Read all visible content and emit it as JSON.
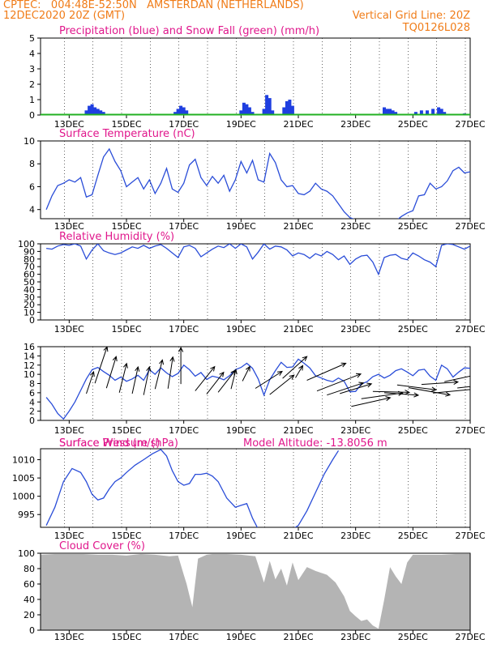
{
  "header": {
    "line1_left": "CPTEC:   004:48E-52:50N   AMSTERDAN (NETHERLANDS)",
    "line2_left": "12DEC2020 20Z (GMT)",
    "line2_right": "Vertical Grid Line: 20Z",
    "line3_right": "TQ0126L028"
  },
  "colors": {
    "header": "#f07c18",
    "title": "#e0178c",
    "line": "#2a4dd8",
    "precip": "#1f3fe0",
    "snow": "#22b022",
    "cloud": "#b4b4b4"
  },
  "x_ticks": [
    "13DEC",
    "15DEC",
    "17DEC",
    "19DEC",
    "21DEC",
    "23DEC",
    "25DEC",
    "27DEC"
  ],
  "chart_data": [
    {
      "type": "bar",
      "title": "Precipitation (blue) and Snow Fall (green) (mm/h)",
      "ylim": [
        0,
        5
      ],
      "yticks": [
        0,
        1,
        2,
        3,
        4,
        5
      ],
      "x_units": "day of December 2020",
      "series": [
        {
          "name": "Precipitation",
          "x": [
            13.6,
            13.7,
            13.8,
            13.9,
            14.0,
            14.1,
            14.2,
            16.7,
            16.8,
            16.9,
            17.0,
            17.1,
            19.0,
            19.1,
            19.2,
            19.3,
            19.4,
            19.8,
            19.9,
            20.0,
            20.1,
            20.5,
            20.6,
            20.7,
            20.8,
            24.0,
            24.1,
            24.2,
            24.3,
            24.4,
            25.1,
            25.3,
            25.5,
            25.7,
            25.9,
            26.0,
            26.1,
            26.8
          ],
          "values": [
            0.3,
            0.6,
            0.7,
            0.5,
            0.4,
            0.3,
            0.2,
            0.2,
            0.4,
            0.6,
            0.5,
            0.3,
            0.3,
            0.8,
            0.7,
            0.5,
            0.2,
            0.4,
            1.3,
            1.1,
            0.3,
            0.5,
            0.9,
            1.0,
            0.6,
            0.5,
            0.4,
            0.4,
            0.3,
            0.2,
            0.2,
            0.3,
            0.3,
            0.4,
            0.5,
            0.4,
            0.2,
            0.1
          ]
        },
        {
          "name": "Snow Fall",
          "values": []
        }
      ]
    },
    {
      "type": "line",
      "title": "Surface Temperature (nC)",
      "ylim": [
        3.2,
        10
      ],
      "yticks": [
        4,
        6,
        8,
        10
      ],
      "series": [
        {
          "x": [
            12.2,
            12.4,
            12.6,
            12.8,
            13.0,
            13.2,
            13.4,
            13.6,
            13.8,
            14.0,
            14.2,
            14.4,
            14.6,
            14.8,
            15.0,
            15.2,
            15.4,
            15.6,
            15.8,
            16.0,
            16.2,
            16.4,
            16.6,
            16.8,
            17.0,
            17.2,
            17.4,
            17.6,
            17.8,
            18.0,
            18.2,
            18.4,
            18.6,
            18.8,
            19.0,
            19.2,
            19.4,
            19.6,
            19.8,
            20.0,
            20.2,
            20.4,
            20.6,
            20.8,
            21.0,
            21.2,
            21.4,
            21.6,
            21.8,
            22.0,
            22.2,
            22.4,
            22.6,
            22.8,
            23.0,
            24.4,
            24.6,
            24.8,
            25.0,
            25.2,
            25.4,
            25.6,
            25.8,
            26.0,
            26.2,
            26.4,
            26.6,
            26.8,
            27.0
          ],
          "values": [
            4.0,
            5.2,
            6.1,
            6.3,
            6.6,
            6.4,
            6.8,
            5.1,
            5.3,
            7.0,
            8.6,
            9.3,
            8.2,
            7.4,
            6.0,
            6.4,
            6.8,
            5.8,
            6.6,
            5.4,
            6.3,
            7.6,
            5.8,
            5.5,
            6.3,
            7.9,
            8.4,
            6.8,
            6.1,
            6.9,
            6.3,
            7.0,
            5.6,
            6.6,
            8.2,
            7.2,
            8.3,
            6.6,
            6.4,
            8.9,
            8.1,
            6.6,
            6.0,
            6.1,
            5.4,
            5.3,
            5.6,
            6.3,
            5.8,
            5.6,
            5.2,
            4.5,
            3.8,
            3.3,
            3.1,
            3.0,
            3.4,
            3.7,
            3.9,
            5.2,
            5.3,
            6.3,
            5.8,
            6.0,
            6.5,
            7.4,
            7.7,
            7.2,
            7.3
          ]
        }
      ]
    },
    {
      "type": "line",
      "title": "Relative Humidity (%)",
      "ylim": [
        0,
        100
      ],
      "yticks": [
        0,
        10,
        20,
        30,
        40,
        50,
        60,
        70,
        80,
        90,
        100
      ],
      "series": [
        {
          "x": [
            12.2,
            12.4,
            12.6,
            12.8,
            13.0,
            13.2,
            13.4,
            13.6,
            13.8,
            14.0,
            14.2,
            14.4,
            14.6,
            14.8,
            15.0,
            15.2,
            15.4,
            15.6,
            15.8,
            16.0,
            16.2,
            16.4,
            16.6,
            16.8,
            17.0,
            17.2,
            17.4,
            17.6,
            17.8,
            18.0,
            18.2,
            18.4,
            18.6,
            18.8,
            19.0,
            19.2,
            19.4,
            19.6,
            19.8,
            20.0,
            20.2,
            20.4,
            20.6,
            20.8,
            21.0,
            21.2,
            21.4,
            21.6,
            21.8,
            22.0,
            22.2,
            22.4,
            22.6,
            22.8,
            23.0,
            23.2,
            23.4,
            23.6,
            23.8,
            24.0,
            24.2,
            24.4,
            24.6,
            24.8,
            25.0,
            25.2,
            25.4,
            25.6,
            25.8,
            26.0,
            26.2,
            26.4,
            26.6,
            26.8,
            27.0
          ],
          "values": [
            94,
            93,
            97,
            99,
            98,
            100,
            97,
            80,
            92,
            100,
            91,
            88,
            86,
            88,
            92,
            96,
            94,
            98,
            94,
            97,
            99,
            94,
            88,
            82,
            96,
            98,
            94,
            83,
            88,
            93,
            97,
            95,
            100,
            94,
            100,
            96,
            80,
            89,
            100,
            93,
            97,
            96,
            92,
            84,
            88,
            86,
            81,
            87,
            84,
            90,
            86,
            79,
            84,
            73,
            80,
            84,
            85,
            76,
            60,
            82,
            85,
            86,
            81,
            79,
            88,
            84,
            79,
            76,
            70,
            98,
            100,
            99,
            96,
            93,
            97
          ]
        }
      ]
    },
    {
      "type": "line",
      "title": "Surface Wind (m/s)",
      "ylim": [
        0,
        16
      ],
      "yticks": [
        0,
        2,
        4,
        6,
        8,
        10,
        12,
        14,
        16
      ],
      "series": [
        {
          "x": [
            12.2,
            12.4,
            12.6,
            12.8,
            13.0,
            13.2,
            13.4,
            13.6,
            13.8,
            14.0,
            14.2,
            14.4,
            14.6,
            14.8,
            15.0,
            15.2,
            15.4,
            15.6,
            15.8,
            16.0,
            16.2,
            16.4,
            16.6,
            16.8,
            17.0,
            17.2,
            17.4,
            17.6,
            17.8,
            18.0,
            18.2,
            18.4,
            18.6,
            18.8,
            19.0,
            19.2,
            19.4,
            19.6,
            19.8,
            20.0,
            20.2,
            20.4,
            20.6,
            20.8,
            21.0,
            21.2,
            21.4,
            21.6,
            21.8,
            22.0,
            22.2,
            22.4,
            22.6,
            22.8,
            23.0,
            23.2,
            23.4,
            23.6,
            23.8,
            24.0,
            24.2,
            24.4,
            24.6,
            24.8,
            25.0,
            25.2,
            25.4,
            25.6,
            25.8,
            26.0,
            26.2,
            26.4,
            26.6,
            26.8,
            27.0
          ],
          "values": [
            5.0,
            3.5,
            1.5,
            0.3,
            2.0,
            4.0,
            6.5,
            9.0,
            11.0,
            11.5,
            10.6,
            9.8,
            8.7,
            9.4,
            8.5,
            9.0,
            9.8,
            8.7,
            11.0,
            10.0,
            11.4,
            10.3,
            9.5,
            10.2,
            12.0,
            11.0,
            9.6,
            10.4,
            8.9,
            9.6,
            9.3,
            8.8,
            9.7,
            11.0,
            11.5,
            12.4,
            11.3,
            9.0,
            5.5,
            8.8,
            10.8,
            12.6,
            11.5,
            11.6,
            13.3,
            12.4,
            11.4,
            9.7,
            9.2,
            8.7,
            8.4,
            9.2,
            8.5,
            6.2,
            6.3,
            7.9,
            8.4,
            9.5,
            10.0,
            9.2,
            9.8,
            10.8,
            11.2,
            10.5,
            9.7,
            10.9,
            11.1,
            9.6,
            8.7,
            12.0,
            11.2,
            9.4,
            10.5,
            11.4,
            11.3
          ]
        }
      ],
      "arrows": [
        {
          "x": 12.6,
          "dx": 0.35,
          "dy": 0.0
        },
        {
          "x": 13.05,
          "dx": -0.3,
          "dy": -0.1
        },
        {
          "x": 13.6,
          "dx": 0.15,
          "dy": 0.45
        },
        {
          "x": 13.9,
          "dx": 0.25,
          "dy": 0.75
        },
        {
          "x": 14.3,
          "dx": 0.2,
          "dy": 0.65
        },
        {
          "x": 14.75,
          "dx": 0.15,
          "dy": 0.6
        },
        {
          "x": 15.2,
          "dx": 0.12,
          "dy": 0.55
        },
        {
          "x": 15.6,
          "dx": 0.12,
          "dy": 0.58
        },
        {
          "x": 16.0,
          "dx": 0.15,
          "dy": 0.6
        },
        {
          "x": 16.45,
          "dx": 0.1,
          "dy": 0.65
        },
        {
          "x": 16.9,
          "dx": 0.0,
          "dy": 0.75
        },
        {
          "x": 17.4,
          "dx": 0.4,
          "dy": 0.5
        },
        {
          "x": 17.8,
          "dx": 0.35,
          "dy": 0.45
        },
        {
          "x": 18.2,
          "dx": 0.35,
          "dy": 0.45
        },
        {
          "x": 18.65,
          "dx": 0.1,
          "dy": 0.4
        },
        {
          "x": 19.05,
          "dx": 0.15,
          "dy": 0.3
        },
        {
          "x": 19.5,
          "dx": 0.55,
          "dy": 0.35
        },
        {
          "x": 20.0,
          "dx": 0.5,
          "dy": 0.4
        },
        {
          "x": 20.45,
          "dx": 0.5,
          "dy": 0.45
        },
        {
          "x": 20.9,
          "dx": 0.15,
          "dy": 0.25
        },
        {
          "x": 21.3,
          "dx": 0.8,
          "dy": 0.35
        },
        {
          "x": 21.65,
          "dx": 0.9,
          "dy": 0.35
        },
        {
          "x": 22.0,
          "dx": 0.75,
          "dy": 0.25
        },
        {
          "x": 22.45,
          "dx": 0.65,
          "dy": 0.2
        },
        {
          "x": 22.85,
          "dx": 0.8,
          "dy": 0.18
        },
        {
          "x": 23.2,
          "dx": 0.85,
          "dy": 0.12
        },
        {
          "x": 23.6,
          "dx": 0.75,
          "dy": -0.02
        },
        {
          "x": 24.0,
          "dx": 0.7,
          "dy": -0.05
        },
        {
          "x": 24.45,
          "dx": 0.8,
          "dy": -0.1
        },
        {
          "x": 24.85,
          "dx": 0.85,
          "dy": -0.15
        },
        {
          "x": 25.3,
          "dx": 0.75,
          "dy": 0.05
        },
        {
          "x": 25.7,
          "dx": 0.85,
          "dy": 0.08
        },
        {
          "x": 26.1,
          "dx": 0.7,
          "dy": 0.15
        },
        {
          "x": 26.55,
          "dx": 0.45,
          "dy": 0.05
        }
      ]
    },
    {
      "type": "line",
      "title": "Surface Pressure (hPa)",
      "annotation": "Model Altitude: -13.8056 m",
      "ylim": [
        991.5,
        1013
      ],
      "yticks": [
        995,
        1000,
        1005,
        1010
      ],
      "series": [
        {
          "x": [
            12.2,
            12.5,
            12.8,
            13.1,
            13.4,
            13.6,
            13.8,
            14.0,
            14.2,
            14.4,
            14.6,
            14.8,
            15.0,
            15.3,
            15.6,
            15.9,
            16.2,
            16.4,
            16.6,
            16.8,
            17.0,
            17.2,
            17.4,
            17.6,
            17.8,
            18.0,
            18.2,
            18.5,
            18.8,
            19.0,
            19.2,
            19.4,
            19.6,
            19.8,
            20.0,
            20.2,
            20.4,
            20.6,
            20.8,
            21.0,
            21.3,
            21.6,
            21.9,
            22.2,
            22.4
          ],
          "values": [
            992,
            997,
            1004,
            1007.6,
            1006.5,
            1004,
            1000.5,
            999,
            999.5,
            1002,
            1004,
            1005,
            1006.5,
            1008.5,
            1010,
            1011.6,
            1012.8,
            1011,
            1007,
            1004,
            1003,
            1003.5,
            1006,
            1006,
            1006.3,
            1005.5,
            1004,
            999.5,
            997,
            997.5,
            998,
            994,
            991,
            990,
            989,
            988,
            988.5,
            990,
            991,
            992,
            996,
            1001,
            1006,
            1010,
            1012.5
          ]
        }
      ]
    },
    {
      "type": "area",
      "title": "Cloud Cover (%)",
      "ylim": [
        0,
        100
      ],
      "yticks": [
        0,
        20,
        40,
        60,
        80,
        100
      ],
      "series": [
        {
          "x": [
            12.0,
            12.5,
            13.0,
            13.5,
            14.0,
            14.5,
            15.0,
            15.5,
            16.0,
            16.5,
            16.8,
            17.0,
            17.1,
            17.2,
            17.3,
            17.4,
            17.5,
            17.8,
            18.0,
            18.5,
            19.0,
            19.5,
            19.8,
            20.0,
            20.2,
            20.4,
            20.6,
            20.8,
            21.0,
            21.3,
            21.6,
            22.0,
            22.3,
            22.6,
            22.8,
            23.0,
            23.2,
            23.4,
            23.6,
            23.8,
            24.0,
            24.2,
            24.4,
            24.6,
            24.8,
            25.0,
            25.5,
            26.0,
            26.5,
            27.0
          ],
          "values": [
            98,
            99,
            99,
            99,
            98,
            98,
            97,
            99,
            98,
            96,
            97,
            72,
            60,
            45,
            30,
            62,
            93,
            98,
            99,
            99,
            98,
            96,
            62,
            90,
            66,
            80,
            58,
            88,
            65,
            82,
            77,
            72,
            62,
            44,
            25,
            18,
            12,
            14,
            6,
            2,
            40,
            82,
            70,
            60,
            88,
            98,
            98,
            98,
            99,
            99
          ]
        }
      ]
    }
  ]
}
